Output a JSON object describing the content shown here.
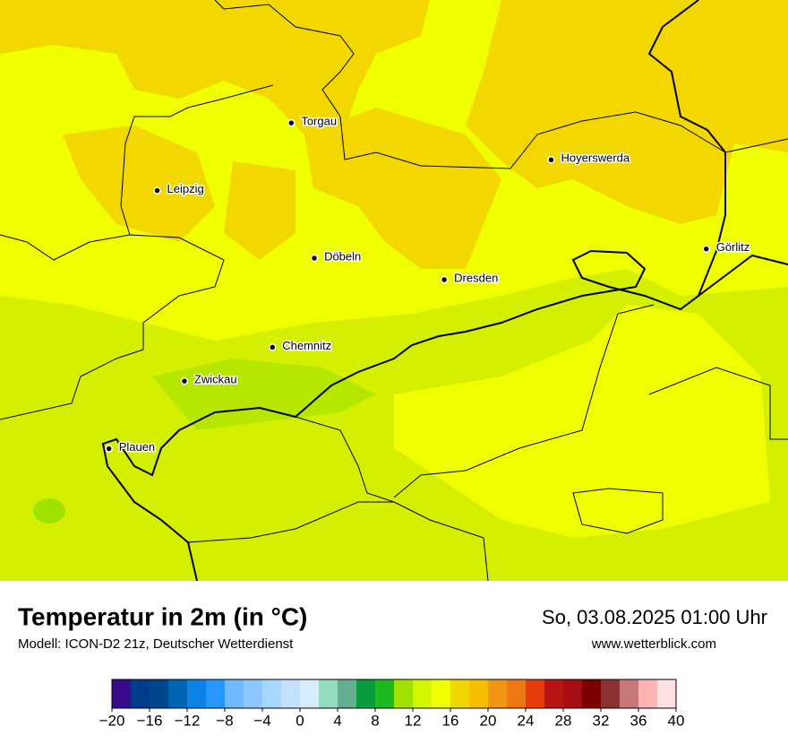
{
  "map": {
    "cities": [
      {
        "name": "Torgau",
        "lon": 13.01,
        "lat": 51.56
      },
      {
        "name": "Leipzig",
        "lon": 12.37,
        "lat": 51.34
      },
      {
        "name": "Döbeln",
        "lon": 13.12,
        "lat": 51.12
      },
      {
        "name": "Dresden",
        "lon": 13.74,
        "lat": 51.05
      },
      {
        "name": "Hoyerswerda",
        "lon": 14.25,
        "lat": 51.44
      },
      {
        "name": "Görlitz",
        "lon": 14.99,
        "lat": 51.15
      },
      {
        "name": "Chemnitz",
        "lon": 12.92,
        "lat": 50.83
      },
      {
        "name": "Zwickau",
        "lon": 12.5,
        "lat": 50.72
      },
      {
        "name": "Plauen",
        "lon": 12.14,
        "lat": 50.5
      }
    ]
  },
  "footer": {
    "title": "Temperatur in 2m (in °C)",
    "subtitle": "Modell: ICON-D2 21z, Deutscher Wetterdienst",
    "date": "So, 03.08.2025 01:00 Uhr",
    "website": "www.wetterblick.com"
  },
  "legend": {
    "colors": [
      "#3a0a8c",
      "#003c8c",
      "#00468c",
      "#0064b4",
      "#0a82e6",
      "#2896ff",
      "#6eb9ff",
      "#8cc8ff",
      "#a5d7ff",
      "#c3e1ff",
      "#d7ebff",
      "#96dcbe",
      "#64af91",
      "#0a9b3c",
      "#1eb91e",
      "#a0e100",
      "#d2f500",
      "#f0ff00",
      "#f0d700",
      "#f5be00",
      "#f09614",
      "#f07814",
      "#e63c0a",
      "#b91414",
      "#a50f14",
      "#7d0000",
      "#8c3232",
      "#c87878",
      "#ffb4b4",
      "#ffe1e1"
    ],
    "ticks": [
      {
        "value": -20,
        "label": "−20"
      },
      {
        "value": -16,
        "label": "−16"
      },
      {
        "value": -12,
        "label": "−12"
      },
      {
        "value": -8,
        "label": "−8"
      },
      {
        "value": -4,
        "label": "−4"
      },
      0,
      4,
      8,
      12,
      16,
      20,
      24,
      28,
      32,
      36,
      40
    ]
  }
}
